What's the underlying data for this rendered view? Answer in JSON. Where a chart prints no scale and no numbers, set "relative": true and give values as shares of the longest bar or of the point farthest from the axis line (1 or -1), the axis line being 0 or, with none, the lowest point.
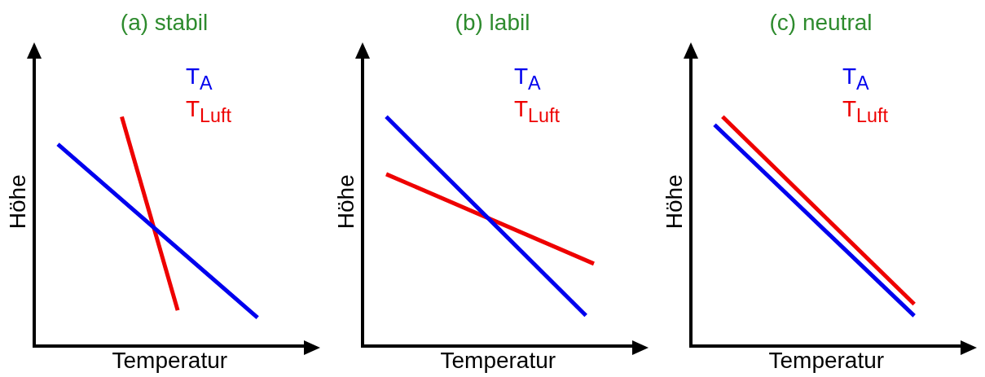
{
  "chart_data": [
    {
      "type": "line",
      "title": "(a) stabil",
      "xlabel": "Temperatur",
      "ylabel": "Höhe",
      "relative": true,
      "categories": [
        null,
        null,
        null,
        null,
        null,
        null,
        null,
        null,
        null,
        null,
        null,
        null,
        null,
        null,
        null,
        null,
        null,
        null,
        null,
        null,
        null,
        null,
        null,
        null,
        null,
        null,
        null,
        null,
        null,
        null,
        null,
        null,
        null,
        null,
        null
      ],
      "series": [
        {
          "name": "T$_{A}$",
          "color": "#0000ee",
          "values": [
            null,
            null,
            null,
            0.88,
            null,
            null,
            null,
            null,
            null,
            null,
            null,
            null,
            null,
            null,
            null,
            null,
            null,
            null,
            null,
            null,
            null,
            null,
            null,
            null,
            null,
            null,
            null,
            null,
            0.125,
            null,
            null,
            null,
            null,
            null,
            null
          ]
        },
        {
          "name": "T$_{Luft}$",
          "color": "#ee0000",
          "values": [
            null,
            null,
            null,
            null,
            null,
            null,
            null,
            null,
            null,
            null,
            null,
            1,
            null,
            null,
            null,
            null,
            null,
            null,
            0.157,
            null,
            null,
            null,
            null,
            null,
            null,
            null,
            null,
            null,
            null,
            null,
            null,
            null,
            null,
            null,
            null
          ]
        }
      ]
    },
    {
      "type": "line",
      "title": "(b) labil",
      "xlabel": "Temperatur",
      "ylabel": "Höhe",
      "relative": true,
      "categories": [
        null,
        null,
        null,
        null,
        null,
        null,
        null,
        null,
        null,
        null,
        null,
        null,
        null,
        null,
        null,
        null,
        null,
        null,
        null,
        null,
        null,
        null,
        null,
        null,
        null,
        null,
        null,
        null,
        null,
        null,
        null,
        null,
        null,
        null,
        null
      ],
      "series": [
        {
          "name": "T$_{A}$",
          "color": "#0000ee",
          "values": [
            null,
            null,
            null,
            1,
            null,
            null,
            null,
            null,
            null,
            null,
            null,
            null,
            null,
            null,
            null,
            null,
            null,
            null,
            null,
            null,
            null,
            null,
            null,
            null,
            null,
            null,
            null,
            null,
            0.134,
            null,
            null,
            null,
            null,
            null,
            null
          ]
        },
        {
          "name": "T$_{Luft}$",
          "color": "#ee0000",
          "values": [
            null,
            null,
            null,
            0.75,
            null,
            null,
            null,
            null,
            null,
            null,
            null,
            null,
            null,
            null,
            null,
            null,
            null,
            null,
            null,
            null,
            null,
            null,
            null,
            null,
            null,
            null,
            null,
            null,
            null,
            0.36,
            null,
            null,
            null,
            null,
            null
          ]
        }
      ]
    },
    {
      "type": "line",
      "title": "(c) neutral",
      "xlabel": "Temperatur",
      "ylabel": "Höhe",
      "relative": true,
      "categories": [
        null,
        null,
        null,
        null,
        null,
        null,
        null,
        null,
        null,
        null,
        null,
        null,
        null,
        null,
        null,
        null,
        null,
        null,
        null,
        null,
        null,
        null,
        null,
        null,
        null,
        null,
        null,
        null,
        null,
        null,
        null,
        null,
        null,
        null,
        null
      ],
      "series": [
        {
          "name": "T$_{A}$",
          "color": "#0000ee",
          "values": [
            null,
            null,
            null,
            0.965,
            null,
            null,
            null,
            null,
            null,
            null,
            null,
            null,
            null,
            null,
            null,
            null,
            null,
            null,
            null,
            null,
            null,
            null,
            null,
            null,
            null,
            null,
            null,
            null,
            0.133,
            null,
            null,
            null,
            null,
            null,
            null
          ]
        },
        {
          "name": "T$_{Luft}$",
          "color": "#ee0000",
          "values": [
            null,
            null,
            null,
            null,
            1,
            null,
            null,
            null,
            null,
            null,
            null,
            null,
            null,
            null,
            null,
            null,
            null,
            null,
            null,
            null,
            null,
            null,
            null,
            null,
            null,
            null,
            null,
            null,
            0.184,
            null,
            null,
            null,
            null,
            null,
            null
          ]
        }
      ]
    }
  ]
}
